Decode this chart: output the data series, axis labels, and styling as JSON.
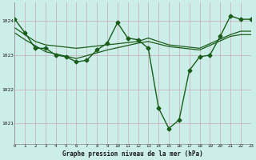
{
  "title": "Graphe pression niveau de la mer (hPa)",
  "background_color": "#cceee8",
  "grid_major_color": "#c8c8d8",
  "grid_minor_color": "#dce8e8",
  "line_color": "#1a5c1a",
  "x_min": 0,
  "x_max": 23,
  "y_min": 1020.4,
  "y_max": 1024.55,
  "yticks": [
    1021,
    1022,
    1023,
    1024
  ],
  "xticks": [
    0,
    1,
    2,
    3,
    4,
    5,
    6,
    7,
    8,
    9,
    10,
    11,
    12,
    13,
    14,
    15,
    16,
    17,
    18,
    19,
    20,
    21,
    22,
    23
  ],
  "series": [
    {
      "x": [
        0,
        1,
        2,
        3,
        4,
        5,
        6,
        7,
        8,
        9,
        10,
        11,
        12,
        13,
        14,
        15,
        16,
        17,
        18,
        19,
        20,
        21,
        22,
        23
      ],
      "y": [
        1024.05,
        1023.65,
        1023.2,
        1023.2,
        1023.0,
        1022.95,
        1022.8,
        1022.85,
        1023.15,
        1023.35,
        1023.95,
        1023.5,
        1023.45,
        1023.2,
        1021.45,
        1020.85,
        1021.1,
        1022.55,
        1022.95,
        1023.0,
        1023.55,
        1024.15,
        1024.05,
        1024.05
      ],
      "marker": "D",
      "linewidth": 1.0
    },
    {
      "x": [
        0,
        1,
        2,
        3,
        6,
        9,
        12,
        13,
        15,
        18,
        21,
        22,
        23
      ],
      "y": [
        1023.8,
        1023.6,
        1023.4,
        1023.3,
        1023.2,
        1023.3,
        1023.4,
        1023.5,
        1023.3,
        1023.2,
        1023.6,
        1023.7,
        1023.7
      ],
      "marker": null,
      "linewidth": 0.9
    },
    {
      "x": [
        0,
        1,
        3,
        6,
        9,
        12,
        13,
        15,
        18,
        21,
        22,
        23
      ],
      "y": [
        1023.65,
        1023.45,
        1023.1,
        1022.9,
        1023.15,
        1023.35,
        1023.4,
        1023.25,
        1023.15,
        1023.55,
        1023.6,
        1023.6
      ],
      "marker": null,
      "linewidth": 0.9
    }
  ]
}
